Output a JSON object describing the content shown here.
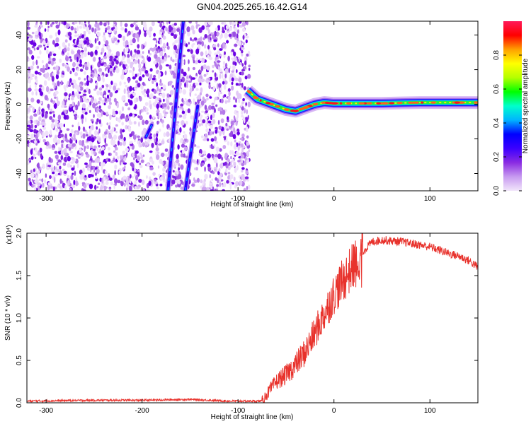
{
  "title": "GN04.2025.265.16.42.G14",
  "chart_data": [
    {
      "type": "heatmap",
      "xlabel": "Height of straight line (km)",
      "ylabel": "Frequency (Hz)",
      "xlim": [
        -320,
        150
      ],
      "ylim": [
        -50,
        48
      ],
      "xticks": [
        -300,
        -200,
        -100,
        0,
        100
      ],
      "yticks": [
        -40,
        -20,
        0,
        20,
        40
      ],
      "colorbar": {
        "label": "Normalized spectral amplitude",
        "range": [
          0,
          1
        ],
        "ticks": [
          "0.0",
          "0.2",
          "0.4",
          "0.6",
          "0.8"
        ],
        "colors": [
          "#f2e6fb",
          "#c79af0",
          "#8a2be2",
          "#3b00ff",
          "#0000ff",
          "#00b4ff",
          "#00ffcc",
          "#00ff00",
          "#b4ff00",
          "#ffff00",
          "#ffa000",
          "#ff0000",
          "#ff1a5a"
        ]
      },
      "noise_region_x": [
        -320,
        -88
      ],
      "streaks": [
        {
          "x": [
            -173,
            -157
          ],
          "y": [
            -50,
            48
          ]
        },
        {
          "x": [
            -155,
            -142
          ],
          "y": [
            -50,
            -1
          ]
        },
        {
          "x": [
            -196,
            -190
          ],
          "y": [
            -19,
            -12
          ]
        }
      ],
      "signal_track": {
        "x": [
          -90,
          -80,
          -70,
          -60,
          -50,
          -40,
          -30,
          -20,
          -10,
          0,
          10,
          30,
          50,
          70,
          90,
          110,
          130,
          150
        ],
        "y": [
          8,
          3,
          1,
          -1,
          -3,
          -4,
          -2,
          0,
          1,
          0.5,
          0.5,
          0.5,
          0.5,
          0.8,
          1,
          1,
          1,
          1
        ]
      }
    },
    {
      "type": "line",
      "xlabel": "Height of straight line (km)",
      "ylabel": "SNR (10 * v/v)",
      "yscale_label": "(x10⁴)",
      "xlim": [
        -320,
        150
      ],
      "ylim": [
        0,
        2.0
      ],
      "xticks": [
        -300,
        -200,
        -100,
        0,
        100
      ],
      "yticks": [
        "0.0",
        "0.5",
        "1.0",
        "1.5",
        "2.0"
      ],
      "color": "#e8322c",
      "series": [
        {
          "x": [
            -320,
            -250,
            -200,
            -150,
            -130,
            -110,
            -90,
            -75,
            -70,
            -60,
            -50,
            -40,
            -30,
            -20,
            -10,
            0,
            10,
            20,
            30,
            40,
            50,
            60,
            70,
            80,
            90,
            100,
            110,
            120,
            130,
            140,
            150
          ],
          "y": [
            0.02,
            0.03,
            0.03,
            0.04,
            0.03,
            0.02,
            0.02,
            0.02,
            0.1,
            0.25,
            0.33,
            0.45,
            0.6,
            0.82,
            1.05,
            1.28,
            1.45,
            1.62,
            1.78,
            1.9,
            1.92,
            1.91,
            1.9,
            1.88,
            1.86,
            1.84,
            1.8,
            1.76,
            1.73,
            1.68,
            1.6
          ]
        }
      ]
    }
  ]
}
